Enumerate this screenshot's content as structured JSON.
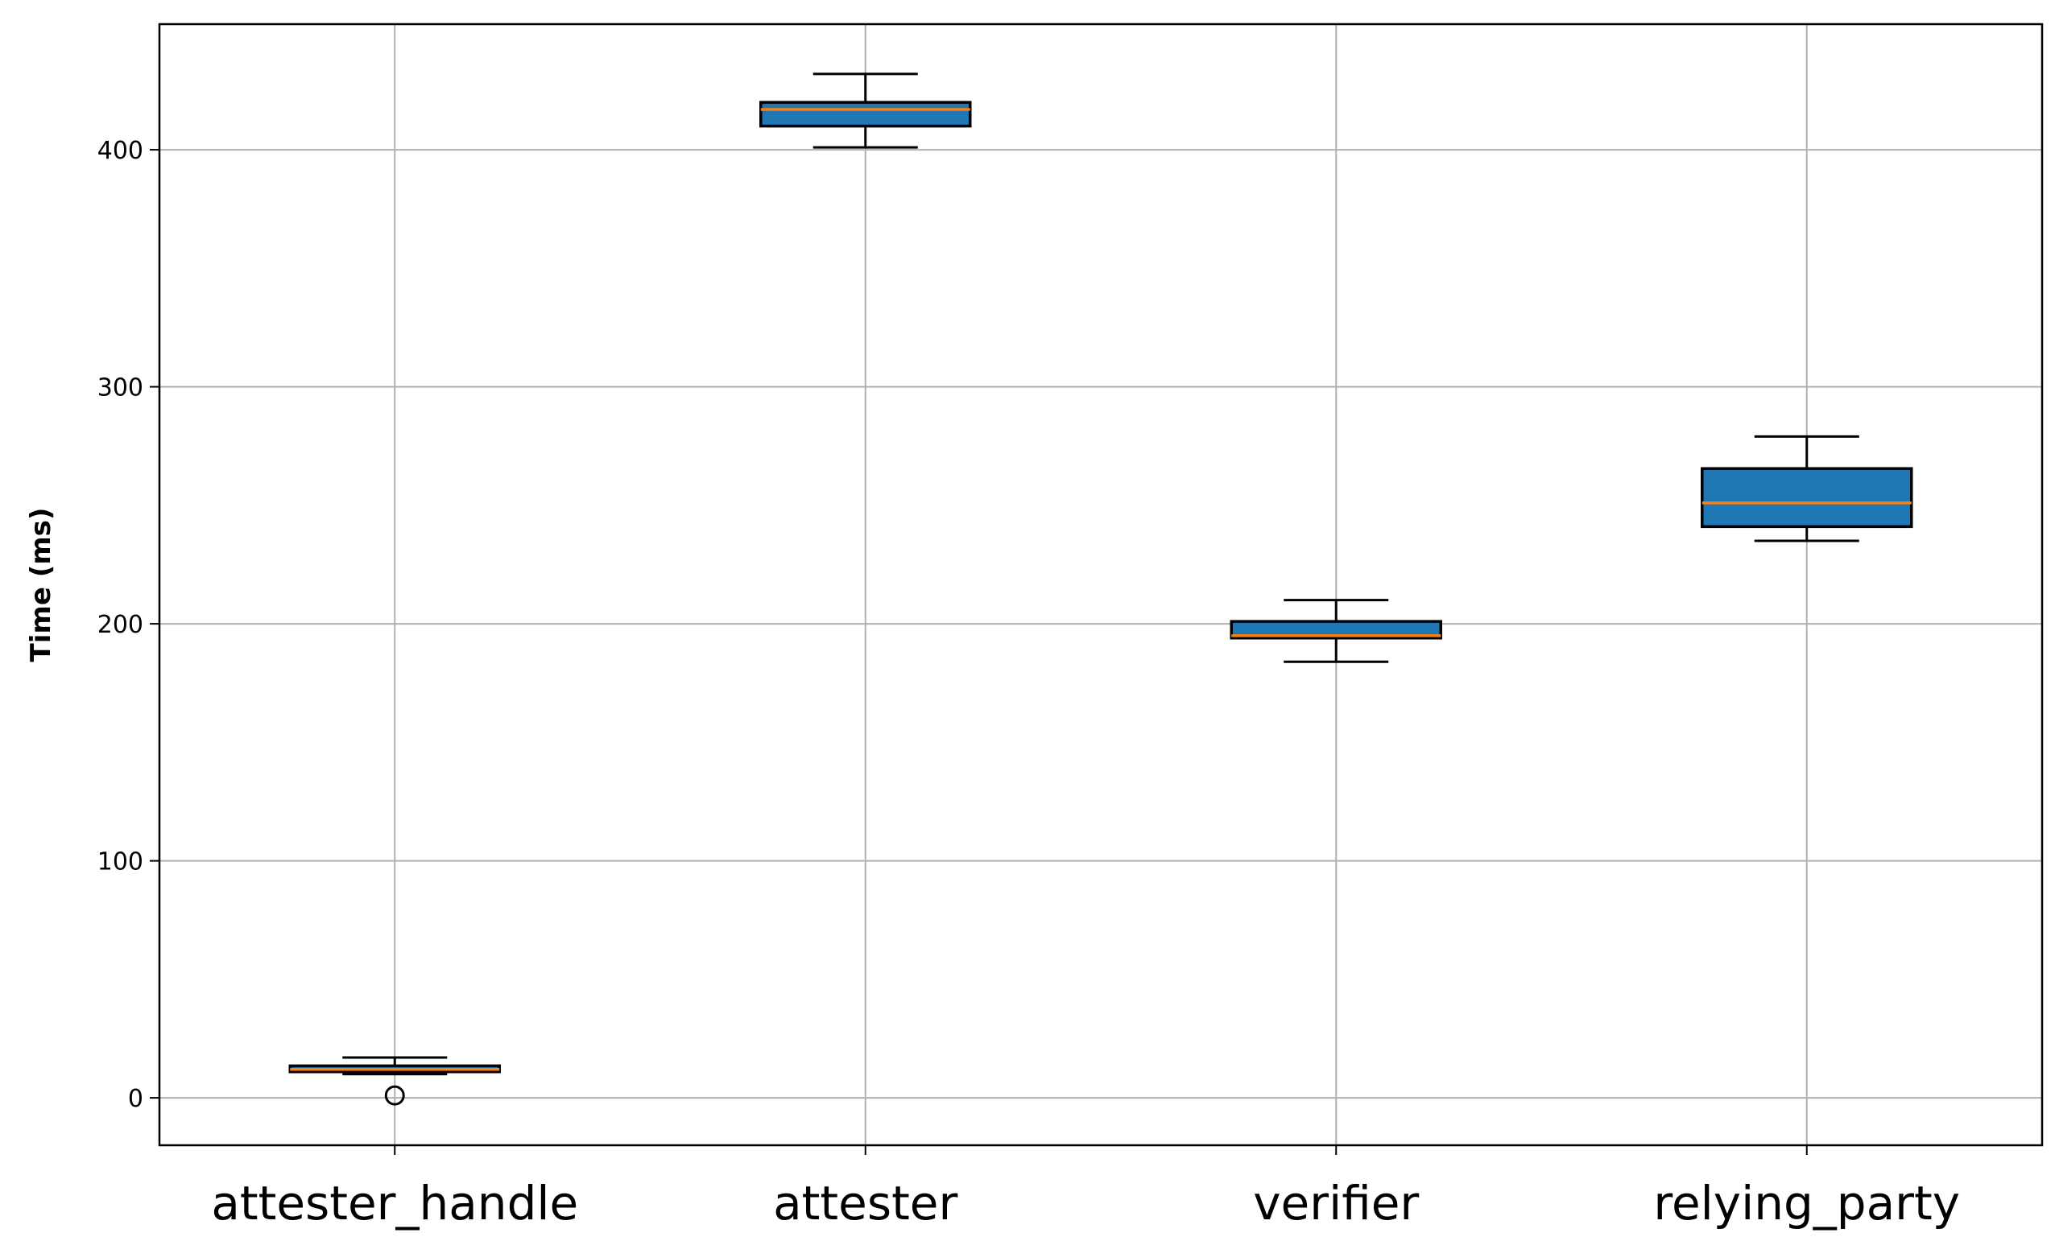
{
  "chart_data": {
    "type": "box",
    "title": "",
    "xlabel": "",
    "ylabel": "Time (ms)",
    "ylim": [
      -20,
      453
    ],
    "y_ticks": [
      "0",
      "100",
      "200",
      "300",
      "400"
    ],
    "grid": true,
    "categories": [
      "attester_handle",
      "attester",
      "verifier",
      "relying_party"
    ],
    "boxes": [
      {
        "category": "attester_handle",
        "whisker_low": 10,
        "q1": 11,
        "median": 12,
        "q3": 13.5,
        "whisker_high": 17,
        "outliers": [
          1
        ]
      },
      {
        "category": "attester",
        "whisker_low": 401,
        "q1": 410,
        "median": 417,
        "q3": 420,
        "whisker_high": 432,
        "outliers": []
      },
      {
        "category": "verifier",
        "whisker_low": 184,
        "q1": 194,
        "median": 195,
        "q3": 201,
        "whisker_high": 210,
        "outliers": []
      },
      {
        "category": "relying_party",
        "whisker_low": 235,
        "q1": 241,
        "median": 251,
        "q3": 265.5,
        "whisker_high": 279,
        "outliers": []
      }
    ],
    "colors": {
      "box_fill": "#1f77b4",
      "median": "#ff7f0e",
      "edge": "#000000",
      "grid": "#b0b0b0"
    }
  }
}
